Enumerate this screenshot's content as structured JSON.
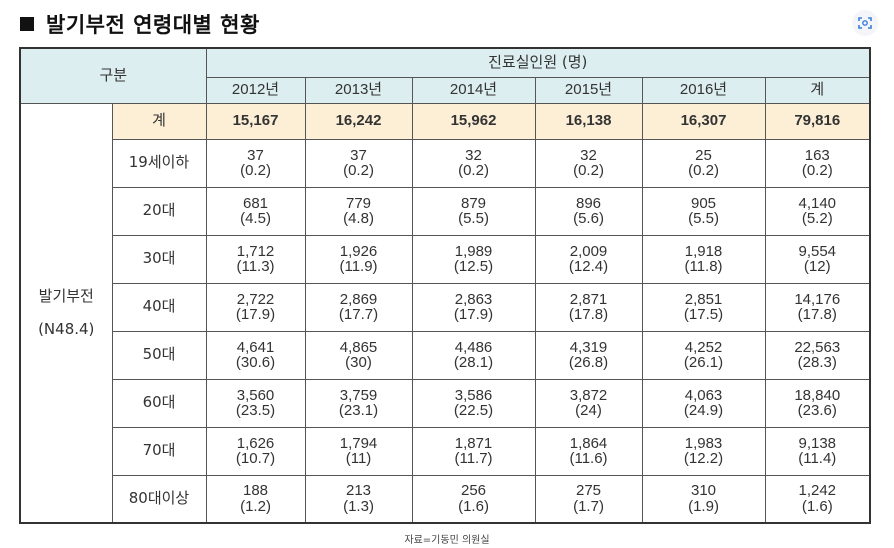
{
  "title": "발기부전 연령대별 현황",
  "header": {
    "category": "구분",
    "group": "진료실인원 (명)",
    "years": [
      "2012년",
      "2013년",
      "2014년",
      "2015년",
      "2016년",
      "계"
    ]
  },
  "group_label": {
    "line1": "발기부전",
    "line2": "(N48.4)"
  },
  "rows": [
    {
      "label": "계",
      "cells": [
        {
          "n": "15,167",
          "p": ""
        },
        {
          "n": "16,242",
          "p": ""
        },
        {
          "n": "15,962",
          "p": ""
        },
        {
          "n": "16,138",
          "p": ""
        },
        {
          "n": "16,307",
          "p": ""
        },
        {
          "n": "79,816",
          "p": ""
        }
      ]
    },
    {
      "label": "19세이하",
      "cells": [
        {
          "n": "37",
          "p": "(0.2)"
        },
        {
          "n": "37",
          "p": "(0.2)"
        },
        {
          "n": "32",
          "p": "(0.2)"
        },
        {
          "n": "32",
          "p": "(0.2)"
        },
        {
          "n": "25",
          "p": "(0.2)"
        },
        {
          "n": "163",
          "p": "(0.2)"
        }
      ]
    },
    {
      "label": "20대",
      "cells": [
        {
          "n": "681",
          "p": "(4.5)"
        },
        {
          "n": "779",
          "p": "(4.8)"
        },
        {
          "n": "879",
          "p": "(5.5)"
        },
        {
          "n": "896",
          "p": "(5.6)"
        },
        {
          "n": "905",
          "p": "(5.5)"
        },
        {
          "n": "4,140",
          "p": "(5.2)"
        }
      ]
    },
    {
      "label": "30대",
      "cells": [
        {
          "n": "1,712",
          "p": "(11.3)"
        },
        {
          "n": "1,926",
          "p": "(11.9)"
        },
        {
          "n": "1,989",
          "p": "(12.5)"
        },
        {
          "n": "2,009",
          "p": "(12.4)"
        },
        {
          "n": "1,918",
          "p": "(11.8)"
        },
        {
          "n": "9,554",
          "p": "(12)"
        }
      ]
    },
    {
      "label": "40대",
      "cells": [
        {
          "n": "2,722",
          "p": "(17.9)"
        },
        {
          "n": "2,869",
          "p": "(17.7)"
        },
        {
          "n": "2,863",
          "p": "(17.9)"
        },
        {
          "n": "2,871",
          "p": "(17.8)"
        },
        {
          "n": "2,851",
          "p": "(17.5)"
        },
        {
          "n": "14,176",
          "p": "(17.8)"
        }
      ]
    },
    {
      "label": "50대",
      "cells": [
        {
          "n": "4,641",
          "p": "(30.6)"
        },
        {
          "n": "4,865",
          "p": "(30)"
        },
        {
          "n": "4,486",
          "p": "(28.1)"
        },
        {
          "n": "4,319",
          "p": "(26.8)"
        },
        {
          "n": "4,252",
          "p": "(26.1)"
        },
        {
          "n": "22,563",
          "p": "(28.3)"
        }
      ]
    },
    {
      "label": "60대",
      "cells": [
        {
          "n": "3,560",
          "p": "(23.5)"
        },
        {
          "n": "3,759",
          "p": "(23.1)"
        },
        {
          "n": "3,586",
          "p": "(22.5)"
        },
        {
          "n": "3,872",
          "p": "(24)"
        },
        {
          "n": "4,063",
          "p": "(24.9)"
        },
        {
          "n": "18,840",
          "p": "(23.6)"
        }
      ]
    },
    {
      "label": "70대",
      "cells": [
        {
          "n": "1,626",
          "p": "(10.7)"
        },
        {
          "n": "1,794",
          "p": "(11)"
        },
        {
          "n": "1,871",
          "p": "(11.7)"
        },
        {
          "n": "1,864",
          "p": "(11.6)"
        },
        {
          "n": "1,983",
          "p": "(12.2)"
        },
        {
          "n": "9,138",
          "p": "(11.4)"
        }
      ]
    },
    {
      "label": "80대이상",
      "cells": [
        {
          "n": "188",
          "p": "(1.2)"
        },
        {
          "n": "213",
          "p": "(1.3)"
        },
        {
          "n": "256",
          "p": "(1.6)"
        },
        {
          "n": "275",
          "p": "(1.7)"
        },
        {
          "n": "310",
          "p": "(1.9)"
        },
        {
          "n": "1,242",
          "p": "(1.6)"
        }
      ]
    }
  ],
  "source": "자료=기동민 의원실",
  "icons": {
    "lens": "lens-search-icon"
  },
  "colors": {
    "header_bg": "#ddeef0",
    "sum_bg": "#fdefd6",
    "border": "#333333"
  }
}
